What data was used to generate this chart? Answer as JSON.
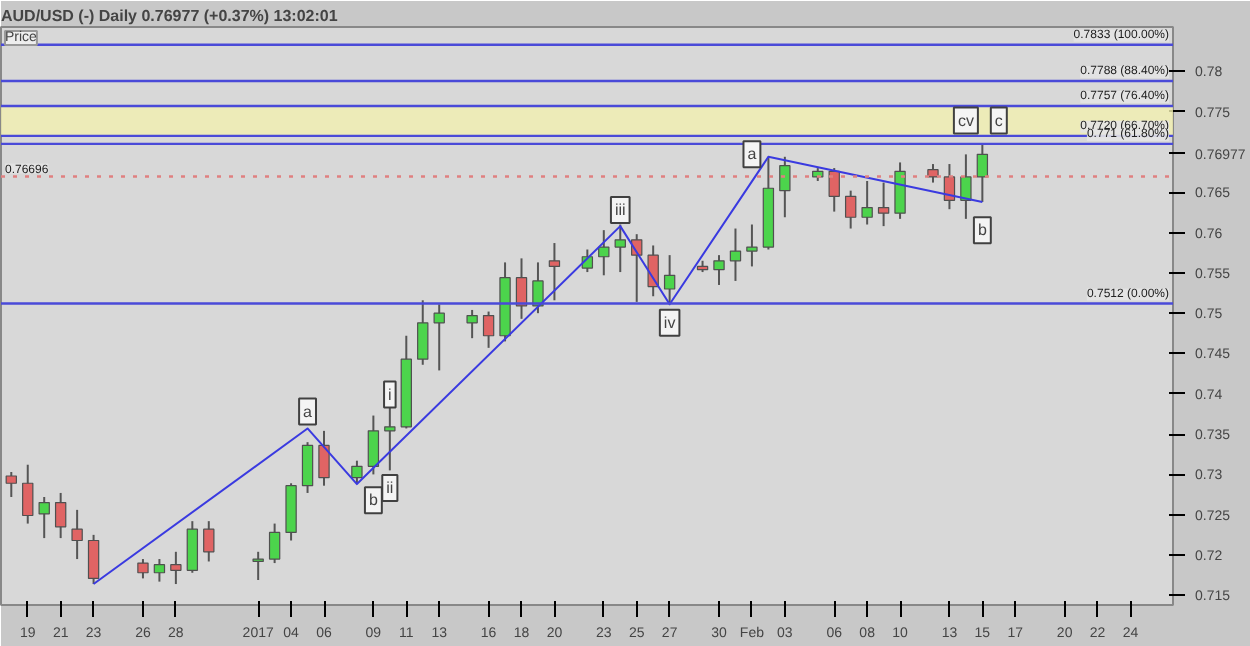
{
  "chart_data": {
    "type": "candlestick",
    "title": "AUD/USD (-)  Daily  0.76977 (+0.37%)  13:02:01",
    "ylabel": "Price",
    "x": [
      "2016-12-18",
      "2016-12-19",
      "2016-12-20",
      "2016-12-21",
      "2016-12-22",
      "2016-12-23",
      "2016-12-26",
      "2016-12-27",
      "2016-12-28",
      "2016-12-29",
      "2016-12-30",
      "2017-01-02",
      "2017-01-03",
      "2017-01-04",
      "2017-01-05",
      "2017-01-06",
      "2017-01-08",
      "2017-01-09",
      "2017-01-10",
      "2017-01-11",
      "2017-01-12",
      "2017-01-13",
      "2017-01-15",
      "2017-01-16",
      "2017-01-17",
      "2017-01-18",
      "2017-01-19",
      "2017-01-20",
      "2017-01-22",
      "2017-01-23",
      "2017-01-24",
      "2017-01-25",
      "2017-01-26",
      "2017-01-27",
      "2017-01-29",
      "2017-01-30",
      "2017-01-31",
      "2017-02-01",
      "2017-02-02",
      "2017-02-03",
      "2017-02-05",
      "2017-02-06",
      "2017-02-07",
      "2017-02-08",
      "2017-02-09",
      "2017-02-10",
      "2017-02-12",
      "2017-02-13",
      "2017-02-14",
      "2017-02-15"
    ],
    "ohlc": [
      [
        0.7298,
        0.7303,
        0.7272,
        0.7289
      ],
      [
        0.7289,
        0.7312,
        0.7239,
        0.7249
      ],
      [
        0.7251,
        0.7272,
        0.7221,
        0.7265
      ],
      [
        0.7265,
        0.7277,
        0.7221,
        0.7235
      ],
      [
        0.7232,
        0.7256,
        0.7195,
        0.7218
      ],
      [
        0.7218,
        0.7225,
        0.7164,
        0.7171
      ],
      [
        0.719,
        0.7195,
        0.7171,
        0.7178
      ],
      [
        0.7178,
        0.7195,
        0.7167,
        0.7188
      ],
      [
        0.7188,
        0.7204,
        0.7164,
        0.7181
      ],
      [
        0.7181,
        0.7242,
        0.7178,
        0.7232
      ],
      [
        0.7232,
        0.7242,
        0.7192,
        0.7204
      ],
      [
        0.7192,
        0.7204,
        0.7169,
        0.7195
      ],
      [
        0.7195,
        0.7239,
        0.719,
        0.7228
      ],
      [
        0.7228,
        0.7289,
        0.7218,
        0.7286
      ],
      [
        0.7286,
        0.734,
        0.7277,
        0.7336
      ],
      [
        0.7336,
        0.7354,
        0.7286,
        0.7296
      ],
      [
        0.7296,
        0.7317,
        0.7289,
        0.731
      ],
      [
        0.731,
        0.7373,
        0.73,
        0.7354
      ],
      [
        0.7354,
        0.7404,
        0.7305,
        0.7359
      ],
      [
        0.7359,
        0.7472,
        0.7357,
        0.7443
      ],
      [
        0.7443,
        0.7516,
        0.7436,
        0.7488
      ],
      [
        0.7488,
        0.7511,
        0.7429,
        0.75
      ],
      [
        0.7488,
        0.7504,
        0.7469,
        0.7497
      ],
      [
        0.7497,
        0.7502,
        0.7457,
        0.7472
      ],
      [
        0.7472,
        0.7563,
        0.7465,
        0.7544
      ],
      [
        0.7544,
        0.7568,
        0.7493,
        0.7509
      ],
      [
        0.7509,
        0.7563,
        0.75,
        0.754
      ],
      [
        0.7565,
        0.7587,
        0.7516,
        0.7558
      ],
      [
        0.7556,
        0.7579,
        0.7551,
        0.757
      ],
      [
        0.757,
        0.7603,
        0.7547,
        0.7582
      ],
      [
        0.7582,
        0.761,
        0.7551,
        0.7591
      ],
      [
        0.7591,
        0.7598,
        0.7514,
        0.7572
      ],
      [
        0.7572,
        0.7584,
        0.7521,
        0.7533
      ],
      [
        0.753,
        0.7572,
        0.7511,
        0.7547
      ],
      [
        0.7558,
        0.7565,
        0.7551,
        0.7554
      ],
      [
        0.7554,
        0.7572,
        0.7535,
        0.7565
      ],
      [
        0.7565,
        0.7605,
        0.754,
        0.7577
      ],
      [
        0.7577,
        0.761,
        0.7558,
        0.7582
      ],
      [
        0.7582,
        0.7694,
        0.7579,
        0.7655
      ],
      [
        0.7652,
        0.7694,
        0.7619,
        0.7683
      ],
      [
        0.7669,
        0.768,
        0.7664,
        0.7676
      ],
      [
        0.7676,
        0.768,
        0.7626,
        0.7645
      ],
      [
        0.7645,
        0.7652,
        0.7605,
        0.7619
      ],
      [
        0.7619,
        0.7664,
        0.761,
        0.7631
      ],
      [
        0.7631,
        0.7662,
        0.7608,
        0.7624
      ],
      [
        0.7624,
        0.7687,
        0.7617,
        0.7676
      ],
      [
        0.7678,
        0.7685,
        0.7662,
        0.7669
      ],
      [
        0.7669,
        0.7685,
        0.7629,
        0.764
      ],
      [
        0.764,
        0.7697,
        0.7617,
        0.7669
      ],
      [
        0.7669,
        0.7709,
        0.7638,
        0.7697
      ]
    ],
    "series": [
      {
        "type": "line",
        "color": "#3a3ae0",
        "x": [
          "2016-12-23",
          "2017-01-05",
          "2017-01-08",
          "2017-01-24",
          "2017-01-27",
          "2017-02-02",
          "2017-02-15"
        ],
        "values": [
          0.7164,
          0.7357,
          0.7288,
          0.7608,
          0.7511,
          0.7694,
          0.7638
        ]
      }
    ],
    "xlim": [
      "2016-12-17T09:00",
      "2017-02-26T14:00"
    ],
    "ylim": [
      0.7138,
      0.7855
    ],
    "xticks": [
      {
        "value": "2016-12-19",
        "label": "19"
      },
      {
        "value": "2016-12-21",
        "label": "21"
      },
      {
        "value": "2016-12-23",
        "label": "23"
      },
      {
        "value": "2016-12-26",
        "label": "26"
      },
      {
        "value": "2016-12-28",
        "label": "28"
      },
      {
        "value": "2017-01-02",
        "label": "2017"
      },
      {
        "value": "2017-01-04",
        "label": "04"
      },
      {
        "value": "2017-01-06",
        "label": "06"
      },
      {
        "value": "2017-01-09",
        "label": "09"
      },
      {
        "value": "2017-01-11",
        "label": "11"
      },
      {
        "value": "2017-01-13",
        "label": "13"
      },
      {
        "value": "2017-01-16",
        "label": "16"
      },
      {
        "value": "2017-01-18",
        "label": "18"
      },
      {
        "value": "2017-01-20",
        "label": "20"
      },
      {
        "value": "2017-01-23",
        "label": "23"
      },
      {
        "value": "2017-01-25",
        "label": "25"
      },
      {
        "value": "2017-01-27",
        "label": "27"
      },
      {
        "value": "2017-01-30",
        "label": "30"
      },
      {
        "value": "2017-02-01",
        "label": "Feb"
      },
      {
        "value": "2017-02-03",
        "label": "03"
      },
      {
        "value": "2017-02-06",
        "label": "06"
      },
      {
        "value": "2017-02-08",
        "label": "08"
      },
      {
        "value": "2017-02-10",
        "label": "10"
      },
      {
        "value": "2017-02-13",
        "label": "13"
      },
      {
        "value": "2017-02-15",
        "label": "15"
      },
      {
        "value": "2017-02-17",
        "label": "17"
      },
      {
        "value": "2017-02-20",
        "label": "20"
      },
      {
        "value": "2017-02-22",
        "label": "22"
      },
      {
        "value": "2017-02-24",
        "label": "24"
      }
    ],
    "yticks": [
      0.715,
      0.72,
      0.725,
      0.73,
      0.735,
      0.74,
      0.745,
      0.75,
      0.755,
      0.76,
      0.765,
      0.76977,
      0.775,
      0.78
    ],
    "ref_lines": [
      {
        "axis": "y",
        "value": 0.7833,
        "label": "0.7833 (100.00%)",
        "color": "#4a4ad8"
      },
      {
        "axis": "y",
        "value": 0.7788,
        "label": "0.7788 (88.40%)",
        "color": "#4a4ad8"
      },
      {
        "axis": "y",
        "value": 0.7757,
        "label": "0.7757 (76.40%)",
        "color": "#4a4ad8"
      },
      {
        "axis": "y",
        "value": 0.772,
        "label": "0.7720 (66.70%)",
        "color": "#4a4ad8"
      },
      {
        "axis": "y",
        "value": 0.771,
        "label": "0.771 (61.80%)",
        "color": "#4a4ad8"
      },
      {
        "axis": "y",
        "value": 0.7512,
        "label": "0.7512 (0.00%)",
        "color": "#4a4ad8"
      },
      {
        "axis": "y",
        "value": 0.76696,
        "label": "0.76696",
        "color": "#e08080",
        "line_style": "dotted"
      }
    ],
    "bands": [
      {
        "axis": "y",
        "from": 0.772,
        "to": 0.7757,
        "color": "#f2f0b0"
      }
    ],
    "annotations": [
      {
        "text": "a",
        "x": "2017-01-05",
        "y": 0.7378
      },
      {
        "text": "b",
        "x": "2017-01-09",
        "y": 0.7268
      },
      {
        "text": "i",
        "x": "2017-01-10",
        "y": 0.7399
      },
      {
        "text": "ii",
        "x": "2017-01-10",
        "y": 0.7283
      },
      {
        "text": "iii",
        "x": "2017-01-24",
        "y": 0.7628
      },
      {
        "text": "iv",
        "x": "2017-01-27",
        "y": 0.7488
      },
      {
        "text": "a",
        "x": "2017-02-01",
        "y": 0.7697
      },
      {
        "text": "b",
        "x": "2017-02-15",
        "y": 0.7603
      },
      {
        "text": "cv",
        "x": "2017-02-14",
        "y": 0.7739
      },
      {
        "text": "c",
        "x": "2017-02-16",
        "y": 0.7739
      }
    ]
  }
}
